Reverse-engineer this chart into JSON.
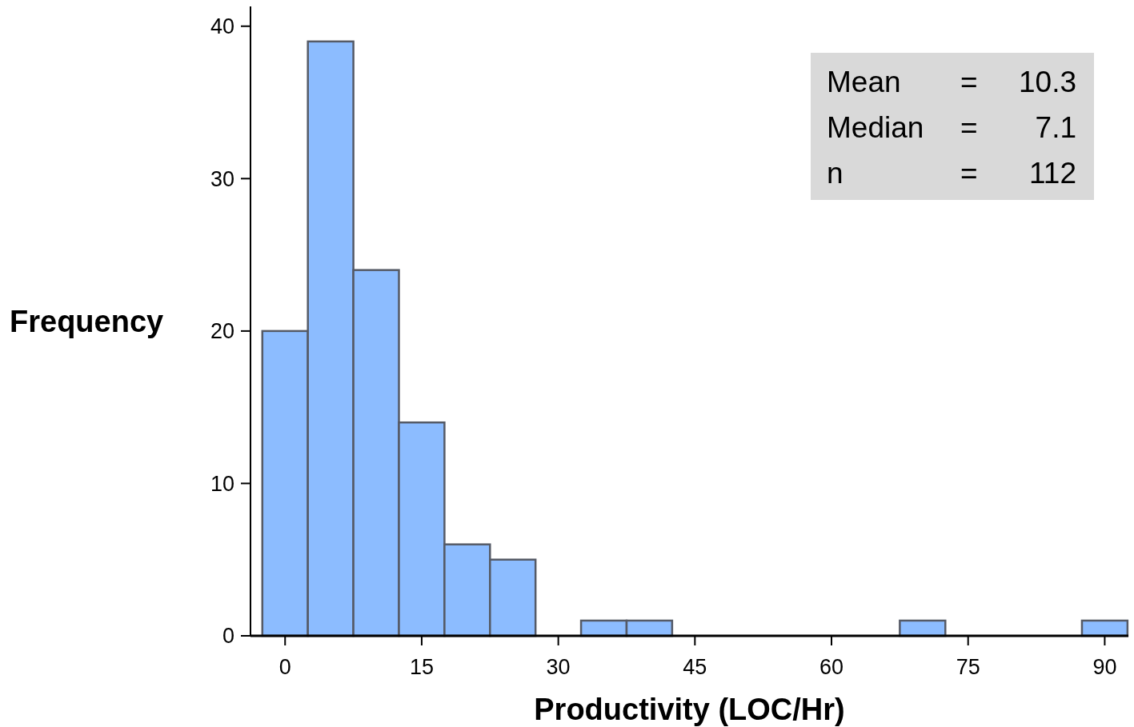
{
  "chart_data": {
    "type": "histogram",
    "xlabel": "Productivity (LOC/Hr)",
    "ylabel": "Frequency",
    "bins": [
      -2.5,
      2.5,
      7.5,
      12.5,
      17.5,
      22.5,
      27.5,
      32.5,
      37.5,
      42.5,
      47.5,
      52.5,
      57.5,
      62.5,
      67.5,
      72.5,
      77.5,
      82.5,
      87.5,
      92.5
    ],
    "values": [
      20,
      39,
      24,
      14,
      6,
      5,
      0,
      1,
      1,
      0,
      0,
      0,
      0,
      0,
      1,
      0,
      0,
      0,
      1
    ],
    "color": "#8cbcff",
    "xlim": [
      -3.8,
      92.6
    ],
    "xticks": [
      0,
      15,
      30,
      45,
      60,
      75,
      90
    ],
    "ylim": [
      0,
      41.3
    ],
    "yticks": [
      0,
      10,
      20,
      30,
      40
    ],
    "grid": false,
    "annotations": [
      "Mean = 10.3",
      "Median = 7.1",
      "n = 112"
    ]
  }
}
